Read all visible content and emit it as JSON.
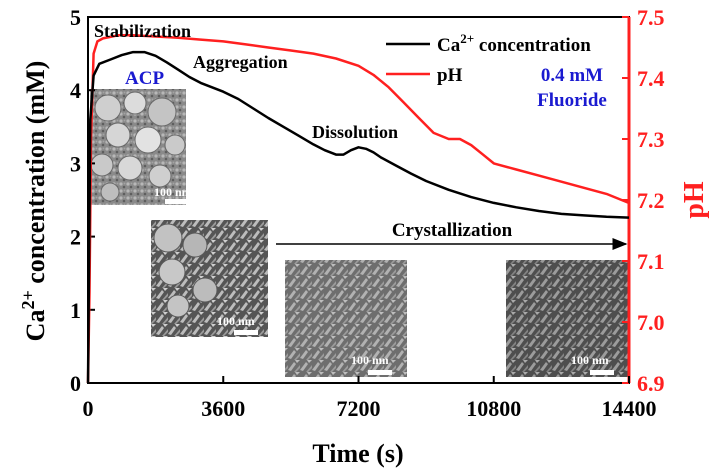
{
  "chart_data": {
    "type": "line",
    "x_label": "Time (s)",
    "x_range": [
      0,
      14400
    ],
    "x_ticks": [
      0,
      3600,
      7200,
      10800,
      14400
    ],
    "y_left_label": {
      "prefix": "Ca",
      "sup": "2+",
      "suffix": " concentration (mM)"
    },
    "y_left_range": [
      0,
      5
    ],
    "y_left_ticks": [
      0,
      1,
      2,
      3,
      4,
      5
    ],
    "y_right_label": "pH",
    "y_right_range": [
      6.9,
      7.5
    ],
    "y_right_ticks": [
      "6.9",
      "7.0",
      "7.1",
      "7.2",
      "7.3",
      "7.4",
      "7.5"
    ],
    "colors": {
      "ca": "#000000",
      "ph": "#ff2020",
      "note": "#1a1ad0"
    },
    "legend": {
      "position": "top-right",
      "entries": [
        {
          "series": "ca",
          "prefix": "Ca",
          "sup": "2+",
          "suffix": " concentration"
        },
        {
          "series": "ph",
          "text": "pH"
        }
      ]
    },
    "condition_note": [
      "0.4 mM",
      "Fluoride"
    ],
    "stage_labels": {
      "stabilization": "Stabilization",
      "aggregation": "Aggregation",
      "dissolution": "Dissolution",
      "crystallization": "Crystallization",
      "acp": "ACP"
    },
    "scale_bar_label": "100 nm",
    "series": [
      {
        "key": "ca",
        "axis": "left",
        "x": [
          0,
          60,
          150,
          300,
          600,
          900,
          1200,
          1500,
          1800,
          2100,
          2400,
          2700,
          3000,
          3300,
          3600,
          4000,
          4400,
          4800,
          5200,
          5600,
          6000,
          6300,
          6600,
          6800,
          7000,
          7200,
          7400,
          7600,
          7800,
          8200,
          8600,
          9000,
          9600,
          10200,
          10800,
          11400,
          12000,
          12600,
          13200,
          13800,
          14400
        ],
        "values": [
          0.0,
          3.6,
          4.2,
          4.36,
          4.42,
          4.48,
          4.52,
          4.52,
          4.47,
          4.38,
          4.28,
          4.18,
          4.1,
          4.04,
          3.98,
          3.88,
          3.75,
          3.62,
          3.5,
          3.38,
          3.26,
          3.18,
          3.12,
          3.12,
          3.18,
          3.22,
          3.2,
          3.15,
          3.08,
          2.97,
          2.86,
          2.76,
          2.64,
          2.54,
          2.46,
          2.4,
          2.35,
          2.31,
          2.29,
          2.27,
          2.26
        ]
      },
      {
        "key": "ph",
        "axis": "right",
        "x": [
          0,
          40,
          80,
          150,
          250,
          400,
          800,
          1200,
          1800,
          2400,
          3000,
          3600,
          4200,
          4800,
          5400,
          6000,
          6600,
          7200,
          7600,
          8000,
          8400,
          8800,
          9200,
          9600,
          9900,
          10200,
          10500,
          10800,
          11400,
          12000,
          12600,
          13200,
          13800,
          14400
        ],
        "values": [
          6.9,
          7.05,
          7.3,
          7.44,
          7.46,
          7.465,
          7.47,
          7.47,
          7.468,
          7.466,
          7.463,
          7.46,
          7.455,
          7.45,
          7.445,
          7.44,
          7.432,
          7.42,
          7.405,
          7.385,
          7.36,
          7.335,
          7.31,
          7.3,
          7.3,
          7.29,
          7.275,
          7.26,
          7.25,
          7.24,
          7.23,
          7.22,
          7.21,
          7.195
        ]
      }
    ]
  }
}
